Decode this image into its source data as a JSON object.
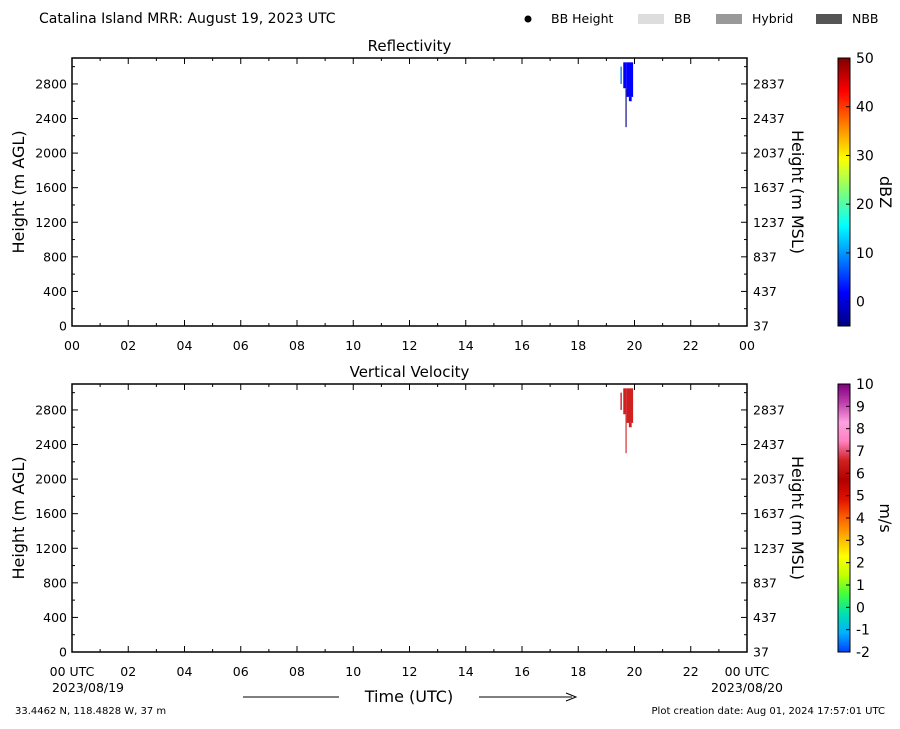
{
  "header": {
    "title": "Catalina Island MRR:  August 19, 2023 UTC",
    "legend": [
      {
        "label": "BB Height",
        "symbol": "dot",
        "color": "#000000"
      },
      {
        "label": "BB",
        "symbol": "patch",
        "color": "#dddddd"
      },
      {
        "label": "Hybrid",
        "symbol": "patch",
        "color": "#999999"
      },
      {
        "label": "NBB",
        "symbol": "patch",
        "color": "#555555"
      }
    ]
  },
  "footer": {
    "location": "33.4462 N, 118.4828 W, 37 m",
    "creation": "Plot creation date: Aug 01, 2024 17:57:01 UTC",
    "xlabel": "Time (UTC)",
    "start_date": "2023/08/19",
    "end_date": "2023/08/20"
  },
  "chart_data": [
    {
      "type": "heatmap",
      "title": "Reflectivity",
      "ylabel_left": "Height (m AGL)",
      "ylabel_right": "Height (m MSL)",
      "colorbar_label": "dBZ",
      "colorbar_ticks": [
        "50",
        "40",
        "30",
        "20",
        "10",
        "0"
      ],
      "colorbar_range": [
        -5,
        50
      ],
      "colorbar_colors": [
        "#00007f",
        "#0000ff",
        "#0080ff",
        "#00ffff",
        "#7dff7a",
        "#ffff00",
        "#ff8000",
        "#ff0000",
        "#7f0000"
      ],
      "y_ticks_left": [
        "0",
        "400",
        "800",
        "1200",
        "1600",
        "2000",
        "2400",
        "2800"
      ],
      "y_ticks_right": [
        "37",
        "437",
        "837",
        "1237",
        "1637",
        "2037",
        "2437",
        "2837"
      ],
      "x_ticks": [
        "00",
        "02",
        "04",
        "06",
        "08",
        "10",
        "12",
        "14",
        "16",
        "18",
        "20",
        "22",
        "00"
      ],
      "xlim_hours": [
        0,
        24
      ],
      "ylim_m_agl": [
        0,
        3100
      ],
      "echoes": [
        {
          "t0": 19.5,
          "t1": 19.55,
          "h0": 2800,
          "h1": 3000,
          "value": 8
        },
        {
          "t0": 19.6,
          "t1": 19.72,
          "h0": 2750,
          "h1": 3050,
          "value": 2
        },
        {
          "t0": 19.68,
          "t1": 19.72,
          "h0": 2300,
          "h1": 2750,
          "value": -1
        },
        {
          "t0": 19.72,
          "t1": 19.95,
          "h0": 2650,
          "h1": 3050,
          "value": 5
        },
        {
          "t0": 19.8,
          "t1": 19.9,
          "h0": 2600,
          "h1": 2650,
          "value": 3
        }
      ]
    },
    {
      "type": "heatmap",
      "title": "Vertical Velocity",
      "ylabel_left": "Height (m AGL)",
      "ylabel_right": "Height (m MSL)",
      "colorbar_label": "m/s",
      "colorbar_ticks": [
        "10",
        "9",
        "8",
        "7",
        "6",
        "5",
        "4",
        "3",
        "2",
        "1",
        "0",
        "-1",
        "-2"
      ],
      "colorbar_range": [
        -2,
        10
      ],
      "colorbar_colors": [
        "#0040ff",
        "#00b0ff",
        "#00e0b0",
        "#40ff40",
        "#c0ff00",
        "#ffff00",
        "#ffb000",
        "#ff6000",
        "#e01000",
        "#b00000",
        "#d02020",
        "#ff80c0",
        "#ffa0e0",
        "#c040b0",
        "#800080"
      ],
      "y_ticks_left": [
        "0",
        "400",
        "800",
        "1200",
        "1600",
        "2000",
        "2400",
        "2800"
      ],
      "y_ticks_right": [
        "37",
        "437",
        "837",
        "1237",
        "1637",
        "2037",
        "2437",
        "2837"
      ],
      "x_ticks": [
        "00 UTC",
        "02",
        "04",
        "06",
        "08",
        "10",
        "12",
        "14",
        "16",
        "18",
        "20",
        "22",
        "00 UTC"
      ],
      "xlim_hours": [
        0,
        24
      ],
      "ylim_m_agl": [
        0,
        3100
      ],
      "echoes": [
        {
          "t0": 19.5,
          "t1": 19.55,
          "h0": 2800,
          "h1": 3000,
          "value": 6
        },
        {
          "t0": 19.6,
          "t1": 19.72,
          "h0": 2750,
          "h1": 3050,
          "value": 6.5
        },
        {
          "t0": 19.68,
          "t1": 19.72,
          "h0": 2300,
          "h1": 2750,
          "value": 6.5
        },
        {
          "t0": 19.72,
          "t1": 19.95,
          "h0": 2650,
          "h1": 3050,
          "value": 6.5
        },
        {
          "t0": 19.8,
          "t1": 19.9,
          "h0": 2600,
          "h1": 2650,
          "value": 6.5
        }
      ]
    }
  ]
}
